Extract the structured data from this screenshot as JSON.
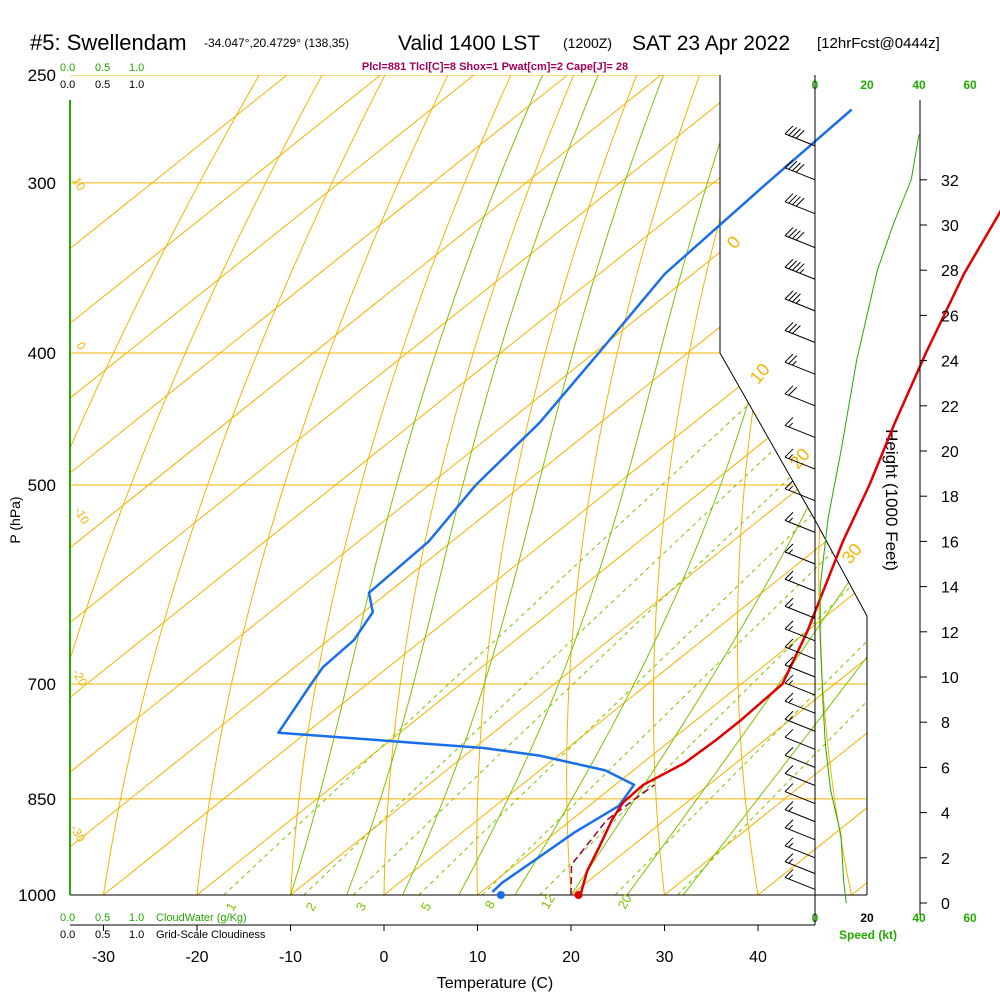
{
  "header": {
    "station": "#5: Swellendam",
    "coords": "-34.047°,20.4729° (138,35)",
    "valid": "Valid 1400 LST",
    "zulu": "(1200Z)",
    "date": "SAT 23 Apr 2022",
    "forecast": "[12hrFcst@0444z]",
    "indices": "Plcl=881 Tlcl[C]=8 Shox=1 Pwat[cm]=2 Cape[J]= 28"
  },
  "colors": {
    "isotherm": "#f5b400",
    "dry_adiabat": "#f5b400",
    "moist_adiabat": "#7cc400",
    "mixing_ratio": "#7cc400",
    "temperature": "#e00000",
    "dewpoint": "#1a6fe8",
    "parcel": "#8a0044",
    "cloud_green": "#22aa00",
    "index_text": "#a0005a"
  },
  "axes": {
    "xlabel": "Temperature (C)",
    "ylabel": "P (hPa)",
    "right_label": "Height (1000 Feet)",
    "speed_label": "Speed (kt)"
  },
  "cloud_scales": {
    "top_green": [
      "0.0",
      "0.5",
      "1.0"
    ],
    "top_black": [
      "0.0",
      "0.5",
      "1.0"
    ],
    "bottom_green": [
      "0.0",
      "0.5",
      "1.0"
    ],
    "bottom_black": [
      "0.0",
      "0.5",
      "1.0"
    ],
    "cloudwater_label": "CloudWater (g/Kg)",
    "cloudiness_label": "Grid-Scale Cloudiness"
  },
  "chart_data": {
    "type": "line",
    "pressure_ticks": [
      250,
      300,
      400,
      500,
      700,
      850,
      1000
    ],
    "temperature_ticks": [
      -30,
      -20,
      -10,
      0,
      10,
      20,
      30,
      40
    ],
    "height_ticks": [
      0,
      2,
      4,
      6,
      8,
      10,
      12,
      14,
      16,
      18,
      20,
      22,
      24,
      26,
      28,
      30,
      32
    ],
    "speed_ticks_top": [
      0,
      20,
      40,
      60
    ],
    "speed_ticks_bottom": [
      0,
      20,
      40,
      60
    ],
    "mixing_ratio_labels": [
      "1",
      "2",
      "3",
      "5",
      "8",
      "12",
      "20"
    ],
    "isotherm_labels": [
      "0",
      "10",
      "20",
      "30"
    ],
    "dry_adiabat_labels": [
      "10",
      "0",
      "-10",
      "-20",
      "-30"
    ],
    "series": [
      {
        "name": "Temperature",
        "points": [
          [
            21.0,
            1000
          ],
          [
            18.5,
            960
          ],
          [
            16.5,
            920
          ],
          [
            14.3,
            880
          ],
          [
            13.2,
            855
          ],
          [
            13.0,
            830
          ],
          [
            14.5,
            800
          ],
          [
            14.8,
            770
          ],
          [
            14.8,
            745
          ],
          [
            14.4,
            700
          ],
          [
            10.0,
            640
          ],
          [
            6.5,
            600
          ],
          [
            1.8,
            550
          ],
          [
            -2.9,
            500
          ],
          [
            -8.5,
            450
          ],
          [
            -14.5,
            400
          ],
          [
            -21.0,
            350
          ],
          [
            -27.5,
            300
          ],
          [
            -30.5,
            280
          ],
          [
            -31.5,
            265
          ]
        ]
      },
      {
        "name": "Dewpoint",
        "points": [
          [
            11.2,
            995
          ],
          [
            11.0,
            980
          ],
          [
            11.5,
            940
          ],
          [
            12.0,
            900
          ],
          [
            13.2,
            860
          ],
          [
            12.0,
            830
          ],
          [
            7.0,
            810
          ],
          [
            -2.0,
            790
          ],
          [
            -9.0,
            780
          ],
          [
            -33.0,
            760
          ],
          [
            -36.0,
            700
          ],
          [
            -37.0,
            680
          ],
          [
            -37.3,
            650
          ],
          [
            -39.0,
            620
          ],
          [
            -42.0,
            600
          ],
          [
            -42.5,
            550
          ],
          [
            -45.0,
            500
          ],
          [
            -46.5,
            450
          ],
          [
            -49.5,
            400
          ],
          [
            -53.0,
            350
          ],
          [
            -54.2,
            300
          ],
          [
            -55.0,
            265
          ]
        ]
      },
      {
        "name": "Parcel",
        "points": [
          [
            20.0,
            1000
          ],
          [
            16.0,
            950
          ],
          [
            13.8,
            881
          ],
          [
            14.0,
            850
          ],
          [
            14.2,
            830
          ]
        ]
      }
    ],
    "surface_markers": [
      {
        "name": "Temperature",
        "t": 20.8,
        "p": 1000
      },
      {
        "name": "Dewpoint",
        "t": 12.5,
        "p": 1000
      }
    ],
    "wind_speed_profile": [
      [
        0,
        12
      ],
      [
        1,
        11
      ],
      [
        3,
        10
      ],
      [
        5,
        6
      ],
      [
        6,
        5
      ],
      [
        7,
        4
      ],
      [
        9,
        3
      ],
      [
        12,
        2
      ],
      [
        14,
        2
      ],
      [
        17,
        5
      ],
      [
        20,
        10
      ],
      [
        22,
        13
      ],
      [
        24,
        16
      ],
      [
        26,
        20
      ],
      [
        28,
        24
      ],
      [
        30,
        30
      ],
      [
        32,
        37
      ],
      [
        34,
        40
      ]
    ],
    "wind_barbs": [
      {
        "h": 33.5,
        "spd": 40
      },
      {
        "h": 32.0,
        "spd": 40
      },
      {
        "h": 30.5,
        "spd": 40
      },
      {
        "h": 29.0,
        "spd": 40
      },
      {
        "h": 27.6,
        "spd": 45
      },
      {
        "h": 26.2,
        "spd": 35
      },
      {
        "h": 24.8,
        "spd": 30
      },
      {
        "h": 23.4,
        "spd": 25
      },
      {
        "h": 22.0,
        "spd": 20
      },
      {
        "h": 20.6,
        "spd": 15
      },
      {
        "h": 19.2,
        "spd": 15
      },
      {
        "h": 17.8,
        "spd": 15
      },
      {
        "h": 16.4,
        "spd": 15
      },
      {
        "h": 15.0,
        "spd": 15
      },
      {
        "h": 13.8,
        "spd": 15
      },
      {
        "h": 12.6,
        "spd": 15
      },
      {
        "h": 11.6,
        "spd": 15
      },
      {
        "h": 10.8,
        "spd": 15
      },
      {
        "h": 10.0,
        "spd": 15
      },
      {
        "h": 9.2,
        "spd": 15
      },
      {
        "h": 8.4,
        "spd": 15
      },
      {
        "h": 7.6,
        "spd": 15
      },
      {
        "h": 6.8,
        "spd": 10
      },
      {
        "h": 6.0,
        "spd": 10
      },
      {
        "h": 5.2,
        "spd": 10
      },
      {
        "h": 4.4,
        "spd": 10
      },
      {
        "h": 3.6,
        "spd": 15
      },
      {
        "h": 2.8,
        "spd": 15
      },
      {
        "h": 2.0,
        "spd": 15
      },
      {
        "h": 1.3,
        "spd": 15
      },
      {
        "h": 0.6,
        "spd": 15
      }
    ]
  }
}
